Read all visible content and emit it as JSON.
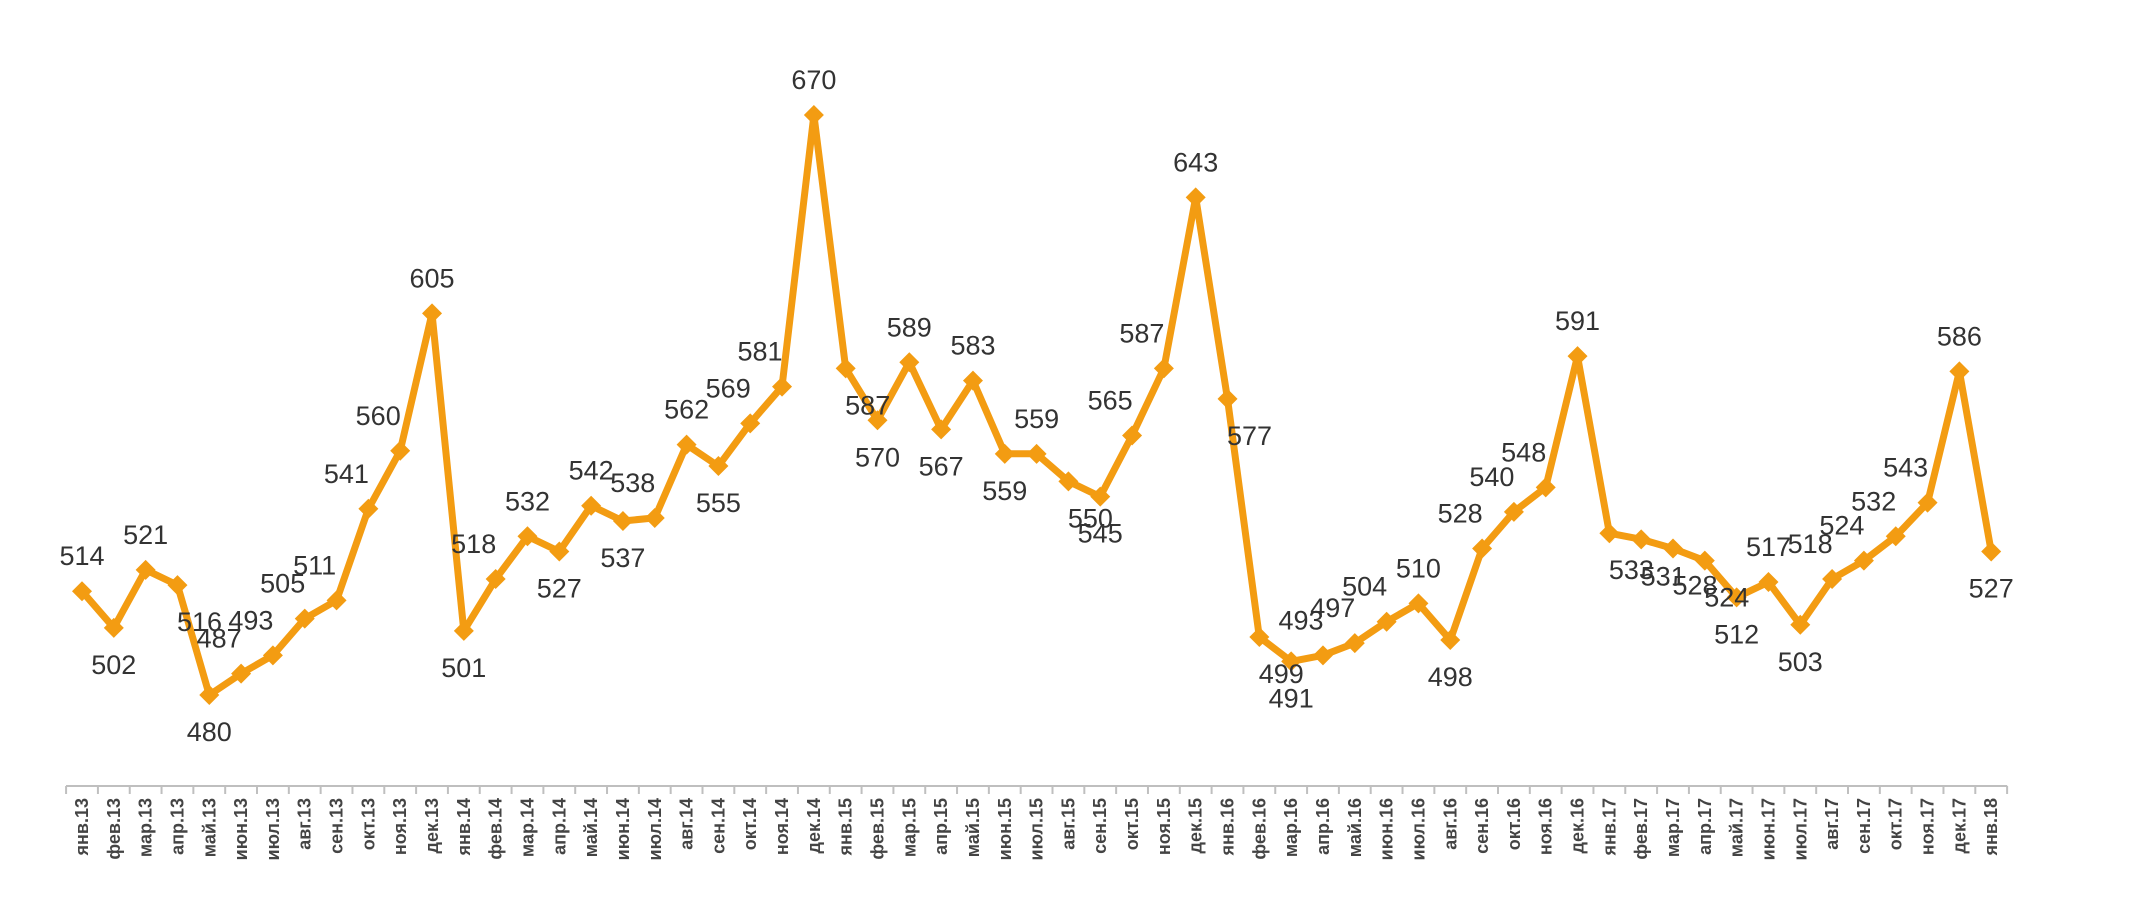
{
  "chart_data": {
    "type": "line",
    "title": "",
    "xlabel": "",
    "ylabel": "",
    "ylim": [
      440,
      690
    ],
    "grid": false,
    "legend": "none",
    "color": "#F39C12",
    "categories": [
      "янв.13",
      "фев.13",
      "мар.13",
      "апр.13",
      "май.13",
      "июн.13",
      "июл.13",
      "авг.13",
      "сен.13",
      "окт.13",
      "ноя.13",
      "дек.13",
      "янв.14",
      "фев.14",
      "мар.14",
      "апр.14",
      "май.14",
      "июн.14",
      "июл.14",
      "авг.14",
      "сен.14",
      "окт.14",
      "ноя.14",
      "дек.14",
      "янв.15",
      "фев.15",
      "мар.15",
      "апр.15",
      "май.15",
      "июн.15",
      "июл.15",
      "авг.15",
      "сен.15",
      "окт.15",
      "ноя.15",
      "дек.15",
      "янв.16",
      "фев.16",
      "мар.16",
      "апр.16",
      "май.16",
      "июн.16",
      "июл.16",
      "авг.16",
      "сен.16",
      "окт.16",
      "ноя.16",
      "дек.16",
      "янв.17",
      "фев.17",
      "мар.17",
      "апр.17",
      "май.17",
      "июн.17",
      "июл.17",
      "авг.17",
      "сен.17",
      "окт.17",
      "ноя.17",
      "дек.17",
      "янв.18"
    ],
    "series": [
      {
        "values": [
          514,
          502,
          521,
          516,
          480,
          487,
          493,
          505,
          511,
          541,
          560,
          605,
          501,
          518,
          532,
          527,
          542,
          537,
          538,
          562,
          555,
          569,
          581,
          670,
          587,
          570,
          589,
          567,
          583,
          559,
          559,
          550,
          545,
          565,
          587,
          643,
          577,
          499,
          491,
          493,
          497,
          504,
          510,
          498,
          528,
          540,
          548,
          591,
          533,
          531,
          528,
          524,
          512,
          517,
          503,
          518,
          524,
          532,
          543,
          586,
          527
        ]
      }
    ]
  }
}
